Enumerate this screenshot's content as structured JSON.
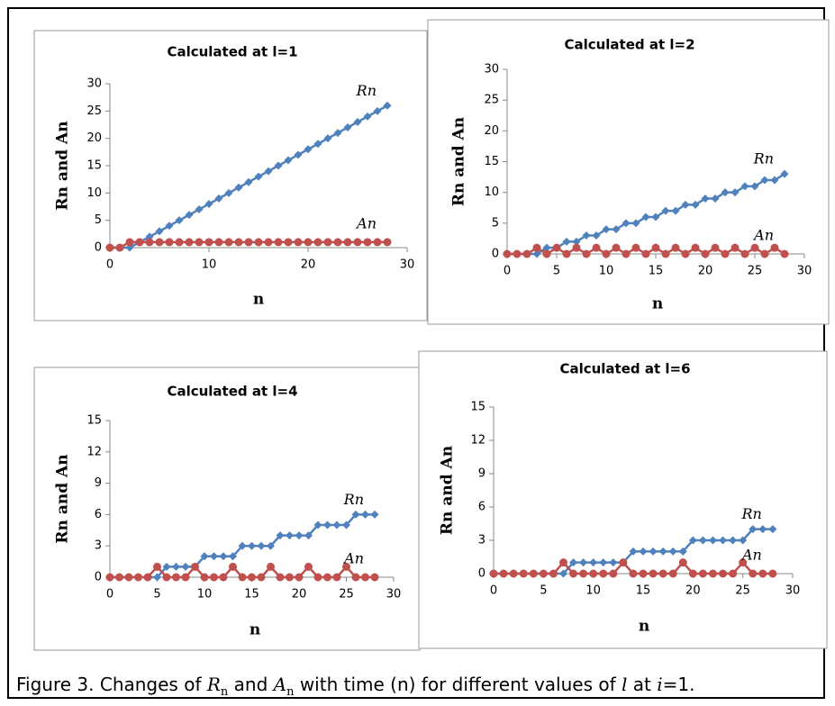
{
  "chart_data": [
    {
      "type": "line",
      "title": "Calculated at l=1",
      "xlabel": "n",
      "ylabel": "Rn and An",
      "x": [
        0,
        1,
        2,
        3,
        4,
        5,
        6,
        7,
        8,
        9,
        10,
        11,
        12,
        13,
        14,
        15,
        16,
        17,
        18,
        19,
        20,
        21,
        22,
        23,
        24,
        25,
        26,
        27,
        28
      ],
      "series": [
        {
          "name": "Rn",
          "color": "#4f81bd",
          "marker": "diamond",
          "values": [
            0,
            0,
            0,
            1,
            2,
            3,
            4,
            5,
            6,
            7,
            8,
            9,
            10,
            11,
            12,
            13,
            14,
            15,
            16,
            17,
            18,
            19,
            20,
            21,
            22,
            23,
            24,
            25,
            26
          ]
        },
        {
          "name": "An",
          "color": "#c0504d",
          "marker": "circle",
          "values": [
            0,
            0,
            1,
            1,
            1,
            1,
            1,
            1,
            1,
            1,
            1,
            1,
            1,
            1,
            1,
            1,
            1,
            1,
            1,
            1,
            1,
            1,
            1,
            1,
            1,
            1,
            1,
            1,
            1
          ]
        }
      ],
      "xlim": [
        0,
        30
      ],
      "xticks": [
        0,
        10,
        20,
        30
      ],
      "ylim": [
        0,
        30
      ],
      "yticks": [
        0,
        5,
        10,
        15,
        20,
        25,
        30
      ]
    },
    {
      "type": "line",
      "title": "Calculated at l=2",
      "xlabel": "n",
      "ylabel": "Rn and An",
      "x": [
        0,
        1,
        2,
        3,
        4,
        5,
        6,
        7,
        8,
        9,
        10,
        11,
        12,
        13,
        14,
        15,
        16,
        17,
        18,
        19,
        20,
        21,
        22,
        23,
        24,
        25,
        26,
        27,
        28
      ],
      "series": [
        {
          "name": "Rn",
          "color": "#4f81bd",
          "marker": "diamond",
          "values": [
            0,
            0,
            0,
            0,
            1,
            1,
            2,
            2,
            3,
            3,
            4,
            4,
            5,
            5,
            6,
            6,
            7,
            7,
            8,
            8,
            9,
            9,
            10,
            10,
            11,
            11,
            12,
            12,
            13
          ]
        },
        {
          "name": "An",
          "color": "#c0504d",
          "marker": "circle",
          "values": [
            0,
            0,
            0,
            1,
            0,
            1,
            0,
            1,
            0,
            1,
            0,
            1,
            0,
            1,
            0,
            1,
            0,
            1,
            0,
            1,
            0,
            1,
            0,
            1,
            0,
            1,
            0,
            1,
            0
          ]
        }
      ],
      "xlim": [
        0,
        30
      ],
      "xticks": [
        0,
        5,
        10,
        15,
        20,
        25,
        30
      ],
      "ylim": [
        0,
        30
      ],
      "yticks": [
        0,
        5,
        10,
        15,
        20,
        25,
        30
      ]
    },
    {
      "type": "line",
      "title": "Calculated at l=4",
      "xlabel": "n",
      "ylabel": "Rn and An",
      "x": [
        0,
        1,
        2,
        3,
        4,
        5,
        6,
        7,
        8,
        9,
        10,
        11,
        12,
        13,
        14,
        15,
        16,
        17,
        18,
        19,
        20,
        21,
        22,
        23,
        24,
        25,
        26,
        27,
        28
      ],
      "series": [
        {
          "name": "Rn",
          "color": "#4f81bd",
          "marker": "diamond",
          "values": [
            0,
            0,
            0,
            0,
            0,
            0,
            1,
            1,
            1,
            1,
            2,
            2,
            2,
            2,
            3,
            3,
            3,
            3,
            4,
            4,
            4,
            4,
            5,
            5,
            5,
            5,
            6,
            6,
            6
          ]
        },
        {
          "name": "An",
          "color": "#c0504d",
          "marker": "circle",
          "values": [
            0,
            0,
            0,
            0,
            0,
            1,
            0,
            0,
            0,
            1,
            0,
            0,
            0,
            1,
            0,
            0,
            0,
            1,
            0,
            0,
            0,
            1,
            0,
            0,
            0,
            1,
            0,
            0,
            0
          ]
        }
      ],
      "xlim": [
        0,
        30
      ],
      "xticks": [
        0,
        5,
        10,
        15,
        20,
        25,
        30
      ],
      "ylim": [
        0,
        15
      ],
      "yticks": [
        0,
        3,
        6,
        9,
        12,
        15
      ]
    },
    {
      "type": "line",
      "title": "Calculated at l=6",
      "xlabel": "n",
      "ylabel": "Rn and An",
      "x": [
        0,
        1,
        2,
        3,
        4,
        5,
        6,
        7,
        8,
        9,
        10,
        11,
        12,
        13,
        14,
        15,
        16,
        17,
        18,
        19,
        20,
        21,
        22,
        23,
        24,
        25,
        26,
        27,
        28
      ],
      "series": [
        {
          "name": "Rn",
          "color": "#4f81bd",
          "marker": "diamond",
          "values": [
            0,
            0,
            0,
            0,
            0,
            0,
            0,
            0,
            1,
            1,
            1,
            1,
            1,
            1,
            2,
            2,
            2,
            2,
            2,
            2,
            3,
            3,
            3,
            3,
            3,
            3,
            4,
            4,
            4
          ]
        },
        {
          "name": "An",
          "color": "#c0504d",
          "marker": "circle",
          "values": [
            0,
            0,
            0,
            0,
            0,
            0,
            0,
            1,
            0,
            0,
            0,
            0,
            0,
            1,
            0,
            0,
            0,
            0,
            0,
            1,
            0,
            0,
            0,
            0,
            0,
            1,
            0,
            0,
            0
          ]
        }
      ],
      "xlim": [
        0,
        30
      ],
      "xticks": [
        0,
        5,
        10,
        15,
        20,
        25,
        30
      ],
      "ylim": [
        0,
        15
      ],
      "yticks": [
        0,
        3,
        6,
        9,
        12,
        15
      ]
    }
  ],
  "caption": [
    "Figure 3. Changes of ",
    "R",
    "n",
    " and ",
    "A",
    "n",
    " with time (n) for different values of ",
    "l",
    " at ",
    "i",
    "=1."
  ]
}
